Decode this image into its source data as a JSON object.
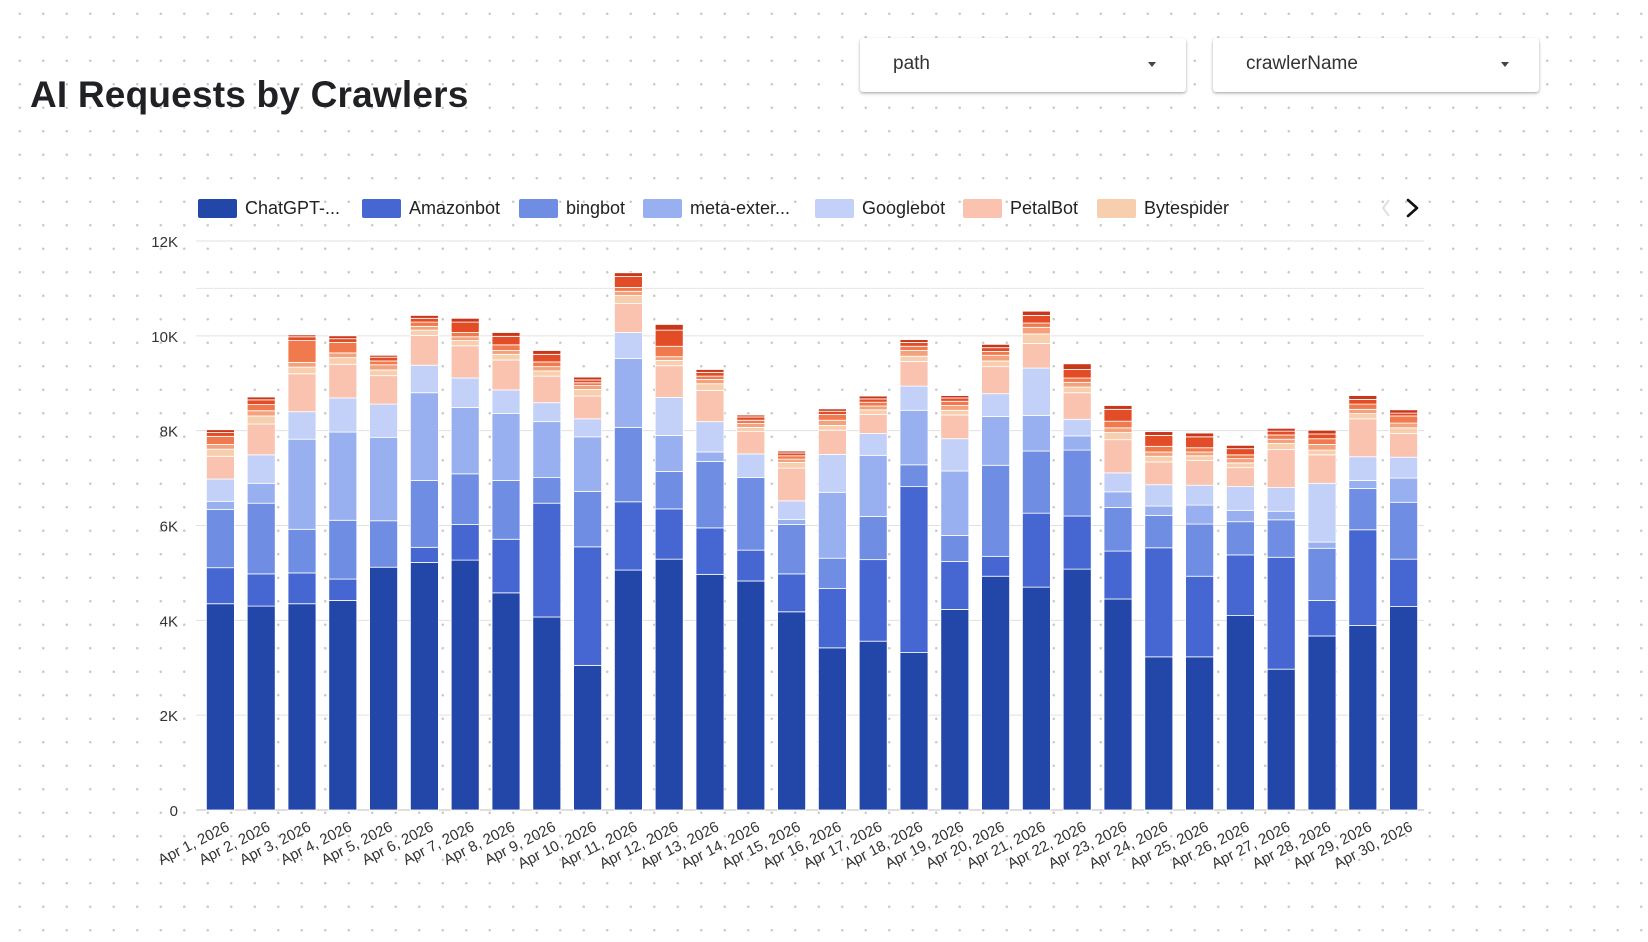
{
  "title": "AI Requests by Crawlers",
  "filters": {
    "path_label": "path",
    "crawler_label": "crawlerName"
  },
  "legend_next_icon": "chevron-right-icon",
  "chart_data": {
    "type": "bar",
    "stacked": true,
    "legend": [
      "ChatGPT-...",
      "Amazonbot",
      "bingbot",
      "meta-exter...",
      "Googlebot",
      "PetalBot",
      "Bytespider"
    ],
    "legend_position": "top",
    "grid": true,
    "ylim": [
      0,
      12000
    ],
    "yticks": [
      0,
      2000,
      4000,
      6000,
      8000,
      10000,
      12000
    ],
    "ytick_labels": [
      "0",
      "2K",
      "4K",
      "6K",
      "8K",
      "10K",
      "12K"
    ],
    "categories": [
      "Apr 1, 2026",
      "Apr 2, 2026",
      "Apr 3, 2026",
      "Apr 4, 2026",
      "Apr 5, 2026",
      "Apr 6, 2026",
      "Apr 7, 2026",
      "Apr 8, 2026",
      "Apr 9, 2026",
      "Apr 10, 2026",
      "Apr 11, 2026",
      "Apr 12, 2026",
      "Apr 13, 2026",
      "Apr 14, 2026",
      "Apr 15, 2026",
      "Apr 16, 2026",
      "Apr 17, 2026",
      "Apr 18, 2026",
      "Apr 19, 2026",
      "Apr 20, 2026",
      "Apr 21, 2026",
      "Apr 22, 2026",
      "Apr 23, 2026",
      "Apr 24, 2026",
      "Apr 25, 2026",
      "Apr 26, 2026",
      "Apr 27, 2026",
      "Apr 28, 2026",
      "Apr 29, 2026",
      "Apr 30, 2026"
    ],
    "colors": [
      "#2347a8",
      "#4667d2",
      "#6e8de3",
      "#98b0f0",
      "#c3d1f8",
      "#f9c3b0",
      "#f8cfae",
      "#f4a27e",
      "#f07a4e",
      "#e24d28",
      "#c9371a"
    ],
    "series": [
      {
        "name": "ChatGPT-...",
        "values": [
          4350,
          4300,
          4350,
          4420,
          5120,
          5220,
          5270,
          4580,
          4070,
          3050,
          5060,
          5290,
          4970,
          4830,
          4180,
          3420,
          3560,
          3320,
          4230,
          4930,
          4700,
          5080,
          4450,
          3230,
          3230,
          4100,
          2970,
          3670,
          3890,
          4290
        ]
      },
      {
        "name": "Amazonbot",
        "values": [
          760,
          680,
          650,
          450,
          0,
          320,
          750,
          1130,
          2400,
          2500,
          1440,
          1060,
          980,
          650,
          800,
          1250,
          1720,
          3500,
          1010,
          420,
          1560,
          1120,
          1010,
          2300,
          1700,
          1280,
          2360,
          750,
          2020,
          1000
        ]
      },
      {
        "name": "bingbot",
        "values": [
          1230,
          1490,
          920,
          1240,
          980,
          1410,
          1070,
          1240,
          540,
          1170,
          1570,
          790,
          1400,
          1530,
          1040,
          640,
          910,
          460,
          550,
          1920,
          1310,
          1390,
          920,
          680,
          1100,
          700,
          790,
          1100,
          870,
          1200
        ]
      },
      {
        "name": "meta-exter...",
        "values": [
          170,
          420,
          1900,
          1860,
          1760,
          1850,
          1400,
          1410,
          1180,
          1150,
          1450,
          760,
          200,
          0,
          110,
          1390,
          1290,
          1150,
          1360,
          1030,
          750,
          300,
          330,
          200,
          400,
          240,
          180,
          130,
          170,
          510
        ]
      },
      {
        "name": "Googlebot",
        "values": [
          470,
          600,
          580,
          720,
          700,
          580,
          620,
          500,
          400,
          380,
          550,
          800,
          640,
          500,
          390,
          800,
          460,
          510,
          680,
          480,
          1000,
          350,
          400,
          450,
          420,
          500,
          500,
          1240,
          500,
          440
        ]
      },
      {
        "name": "PetalBot",
        "values": [
          480,
          650,
          800,
          710,
          600,
          630,
          680,
          630,
          560,
          480,
          610,
          670,
          660,
          470,
          690,
          510,
          400,
          520,
          500,
          570,
          520,
          560,
          700,
          480,
          520,
          400,
          800,
          600,
          800,
          500
        ]
      },
      {
        "name": "Bytespider",
        "values": [
          150,
          170,
          140,
          140,
          120,
          110,
          110,
          120,
          110,
          140,
          170,
          110,
          140,
          90,
          120,
          100,
          100,
          110,
          100,
          120,
          200,
          120,
          150,
          120,
          100,
          100,
          130,
          100,
          110,
          120
        ]
      },
      {
        "name": "",
        "values": [
          100,
          110,
          100,
          100,
          110,
          80,
          80,
          80,
          90,
          80,
          90,
          80,
          90,
          80,
          70,
          110,
          80,
          120,
          100,
          120,
          140,
          100,
          100,
          90,
          80,
          90,
          90,
          120,
          90,
          100
        ]
      },
      {
        "name": "",
        "values": [
          170,
          130,
          460,
          220,
          80,
          90,
          90,
          120,
          100,
          60,
          80,
          220,
          70,
          70,
          70,
          120,
          80,
          90,
          90,
          80,
          90,
          90,
          140,
          120,
          90,
          80,
          90,
          120,
          110,
          150
        ]
      },
      {
        "name": "",
        "values": [
          80,
          100,
          80,
          80,
          80,
          80,
          220,
          180,
          160,
          60,
          230,
          340,
          80,
          70,
          60,
          70,
          70,
          80,
          70,
          80,
          160,
          180,
          250,
          230,
          230,
          130,
          80,
          100,
          100,
          60
        ]
      },
      {
        "name": "",
        "values": [
          60,
          60,
          40,
          60,
          40,
          60,
          80,
          80,
          80,
          60,
          80,
          120,
          60,
          40,
          40,
          50,
          60,
          60,
          50,
          70,
          90,
          120,
          80,
          80,
          80,
          70,
          60,
          80,
          80,
          70
        ]
      }
    ]
  }
}
